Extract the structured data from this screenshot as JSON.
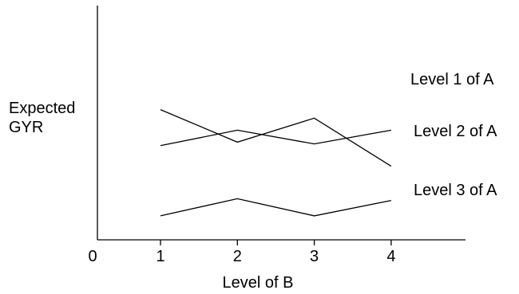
{
  "chart_data": {
    "type": "line",
    "title": "",
    "xlabel": "Level of B",
    "ylabel": [
      "Expected",
      "GYR"
    ],
    "origin_label": "0",
    "categories": [
      "1",
      "2",
      "3",
      "4"
    ],
    "x_numeric": [
      1,
      2,
      3,
      4
    ],
    "xlim": [
      0,
      5
    ],
    "ylim": [
      0,
      10
    ],
    "y_ticks_shown": false,
    "grid": false,
    "legend": "direct-labels-right",
    "series": [
      {
        "name": "Level 1 of A",
        "values": [
          5.5,
          6.4,
          5.6,
          6.4
        ]
      },
      {
        "name": "Level 2 of A",
        "values": [
          7.6,
          5.7,
          7.1,
          4.3
        ]
      },
      {
        "name": "Level 3 of A",
        "values": [
          1.4,
          2.4,
          1.4,
          2.3
        ]
      }
    ],
    "line_color": "#000000",
    "axis_color": "#000000"
  }
}
